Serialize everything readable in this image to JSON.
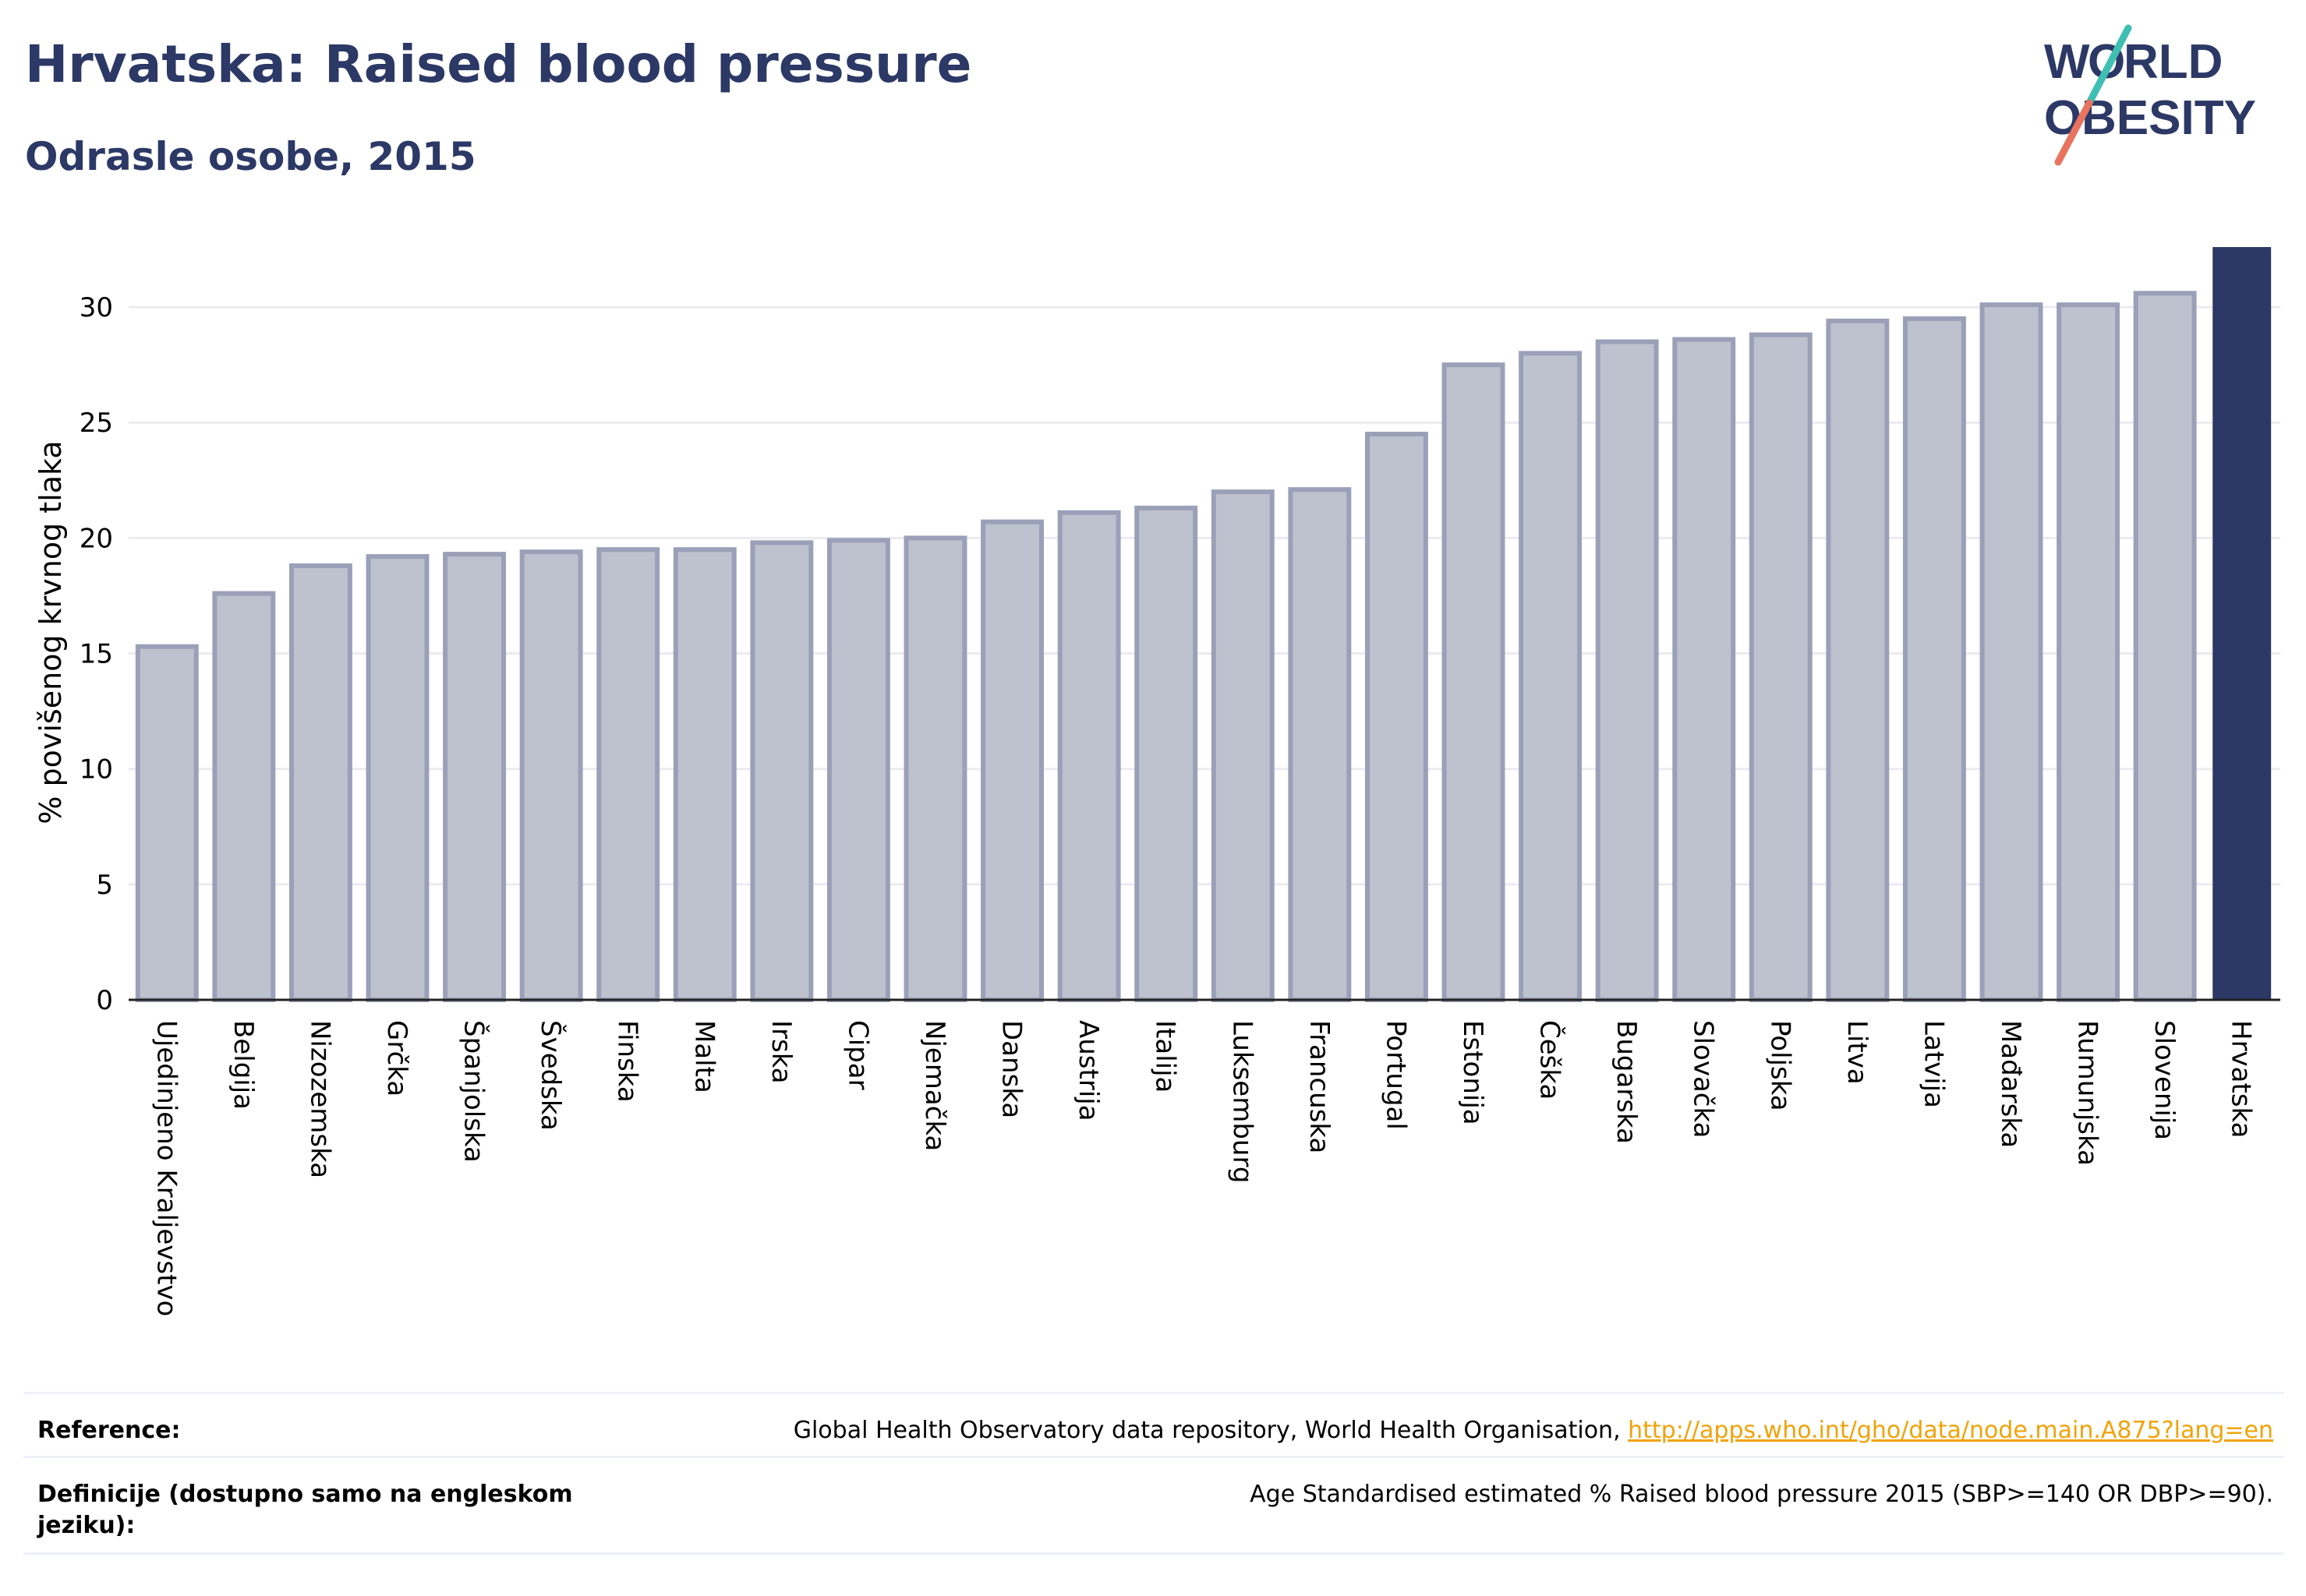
{
  "header": {
    "title": "Hrvatska: Raised blood pressure",
    "subtitle": "Odrasle osobe, 2015",
    "logo_text": "WORLD OBESITY"
  },
  "colors": {
    "title": "#2c3865",
    "highlight_bar": "#2c3865",
    "other_bar_fill": "#bec1ce",
    "other_bar_stroke": "#9aa0b8",
    "gridline": "#ebebf0",
    "logo_accent_teal": "#3fbfb3",
    "logo_accent_coral": "#e8735f",
    "link": "#f0a30a"
  },
  "chart_data": {
    "type": "bar",
    "title": "Hrvatska: Raised blood pressure",
    "subtitle": "Odrasle osobe, 2015",
    "xlabel": "",
    "ylabel": "% povišenog krvnog tlaka",
    "ylim": [
      0,
      32.5
    ],
    "yticks": [
      0,
      5,
      10,
      15,
      20,
      25,
      30
    ],
    "grid": true,
    "highlight": "Hrvatska",
    "categories": [
      "Ujedinjeno Kraljevstvo",
      "Belgija",
      "Nizozemska",
      "Grčka",
      "Španjolska",
      "Švedska",
      "Finska",
      "Malta",
      "Irska",
      "Cipar",
      "Njemačka",
      "Danska",
      "Austrija",
      "Italija",
      "Luksemburg",
      "Francuska",
      "Portugal",
      "Estonija",
      "Češka",
      "Bugarska",
      "Slovačka",
      "Poljska",
      "Litva",
      "Latvija",
      "Mađarska",
      "Rumunjska",
      "Slovenija",
      "Hrvatska"
    ],
    "values": [
      15.3,
      17.6,
      18.8,
      19.2,
      19.3,
      19.4,
      19.5,
      19.5,
      19.8,
      19.9,
      20.0,
      20.7,
      21.1,
      21.3,
      22.0,
      22.1,
      24.5,
      27.5,
      28.0,
      28.5,
      28.6,
      28.8,
      29.4,
      29.5,
      30.1,
      30.1,
      30.6,
      32.6
    ]
  },
  "footer": {
    "reference_label": "Reference:",
    "reference_text": "Global Health Observatory data repository, World Health Organisation, ",
    "reference_link": "http://apps.who.int/gho/data/node.main.A875?lang=en",
    "definition_label": "Definicije (dostupno samo na engleskom jeziku):",
    "definition_text": "Age Standardised estimated % Raised blood pressure 2015 (SBP>=140 OR DBP>=90)."
  }
}
